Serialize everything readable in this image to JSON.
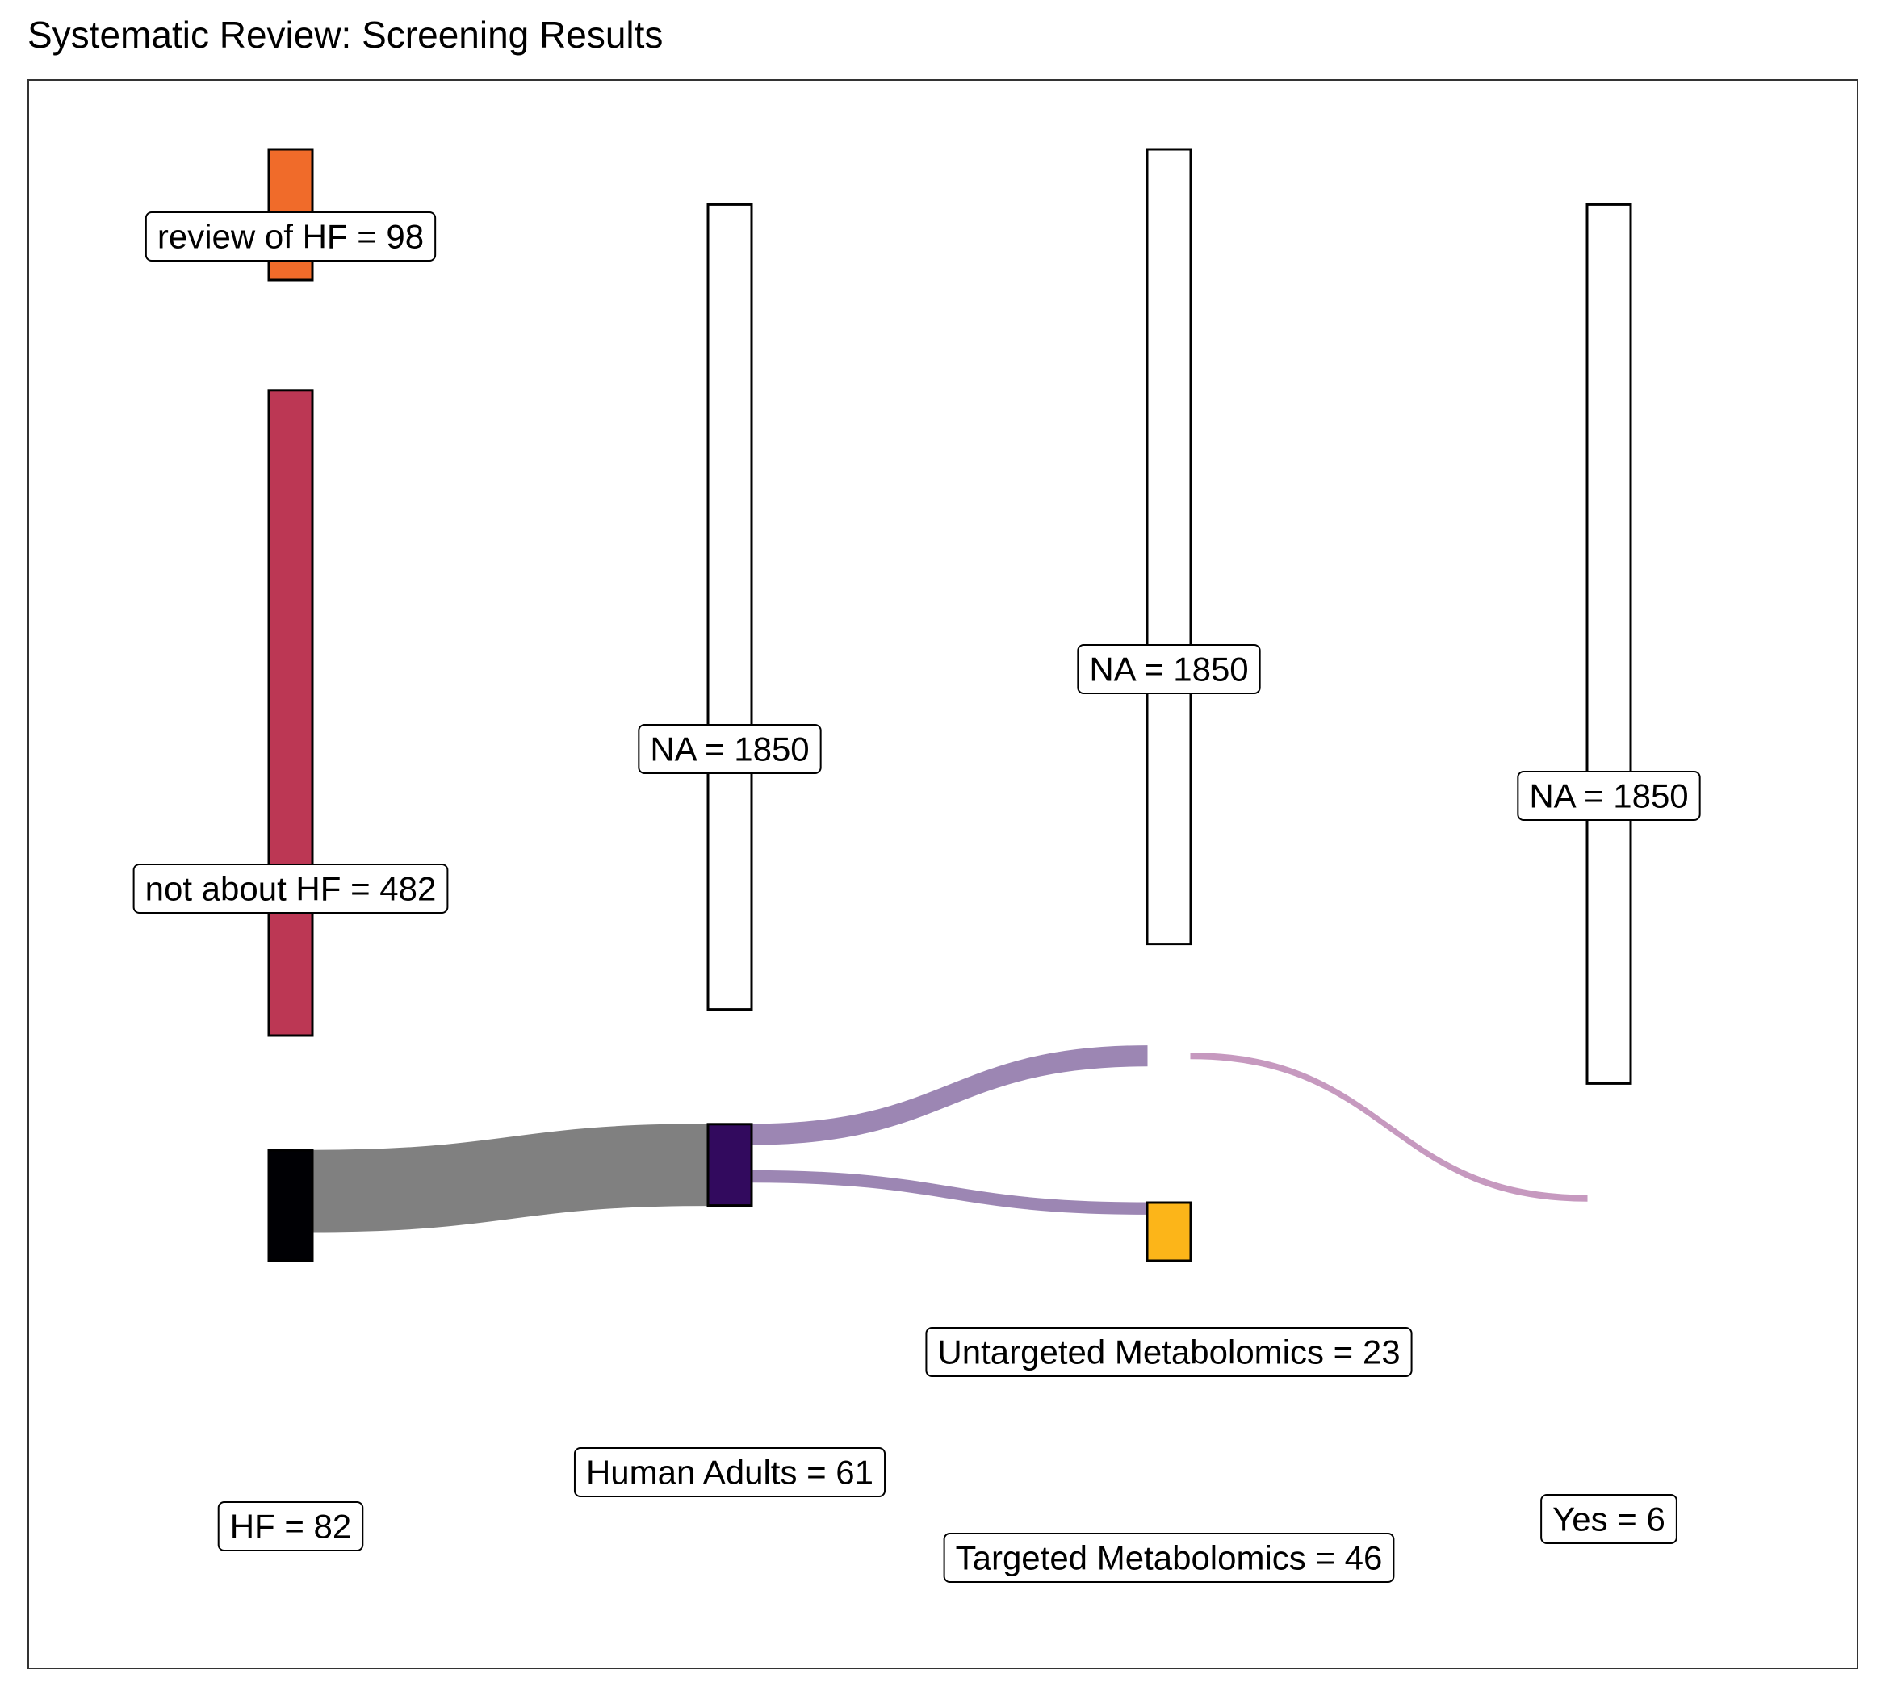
{
  "chart_data": {
    "type": "sankey",
    "title": "Systematic Review: Screening Results",
    "stages": [
      "stage-1",
      "stage-2",
      "stage-3",
      "stage-4"
    ],
    "nodes": [
      {
        "id": "review-hf",
        "stage": 0,
        "category": "review of HF",
        "value": 98,
        "label": "review of HF = 98",
        "color": "#F06B2A",
        "y0": 0.0,
        "y1": 0.09
      },
      {
        "id": "not-about-hf",
        "stage": 0,
        "category": "not about HF",
        "value": 482,
        "label": "not about HF = 482",
        "color": "#BC3754",
        "y0": 0.166,
        "y1": 0.61
      },
      {
        "id": "hf-1",
        "stage": 0,
        "category": "HF",
        "value": 82,
        "label": "HF = 82",
        "color": "#000004",
        "y0": 0.689,
        "y1": 0.765
      },
      {
        "id": "na-2",
        "stage": 1,
        "category": "NA",
        "value": 1850,
        "label": "NA = 1850",
        "color": "#FFFFFF",
        "y0": 0.038,
        "y1": 0.592
      },
      {
        "id": "human-adults",
        "stage": 1,
        "category": "Human Adults",
        "value": 61,
        "label": "Human Adults = 61",
        "color": "#320A5E",
        "y0": 0.671,
        "y1": 0.727
      },
      {
        "id": "na-3",
        "stage": 2,
        "category": "NA",
        "value": 1850,
        "label": "NA = 1850",
        "color": "#FFFFFF",
        "y0": 0.0,
        "y1": 0.547
      },
      {
        "id": "untargeted",
        "stage": 2,
        "category": "Untargeted Metabolomics",
        "value": 23,
        "label": "Untargeted Metabolomics = 23",
        "color": "#D1DBE8",
        "y0": 0.625,
        "y1": 0.625
      },
      {
        "id": "targeted",
        "stage": 2,
        "category": "Targeted Metabolomics",
        "value": 46,
        "label": "Targeted Metabolomics = 46",
        "color": "#FCB519",
        "y0": 0.725,
        "y1": 0.765
      },
      {
        "id": "na-4",
        "stage": 3,
        "category": "NA",
        "value": 1850,
        "label": "NA = 1850",
        "color": "#FFFFFF",
        "y0": 0.038,
        "y1": 0.643
      },
      {
        "id": "yes",
        "stage": 3,
        "category": "Yes",
        "value": 6,
        "label": "Yes = 6",
        "color": "#C5C5C5",
        "y0": 0.722,
        "y1": 0.722
      }
    ],
    "links": [
      {
        "source": "hf-1",
        "target": "human-adults",
        "color": "#808080",
        "s0": 0.689,
        "s1": 0.745,
        "t0": 0.671,
        "t1": 0.727
      },
      {
        "source": "human-adults",
        "target": "untargeted",
        "color": "#9C86B3",
        "s0": 0.671,
        "s1": 0.685,
        "t0": 0.617,
        "t1": 0.631
      },
      {
        "source": "human-adults",
        "target": "targeted",
        "color": "#9C86B3",
        "s0": 0.703,
        "s1": 0.711,
        "t0": 0.725,
        "t1": 0.733
      },
      {
        "source": "untargeted",
        "target": "yes",
        "color": "#C699BF",
        "s0": 0.622,
        "s1": 0.626,
        "t0": 0.72,
        "t1": 0.724
      }
    ],
    "labels_in_boxes": true,
    "legend": "none",
    "grid": false
  }
}
